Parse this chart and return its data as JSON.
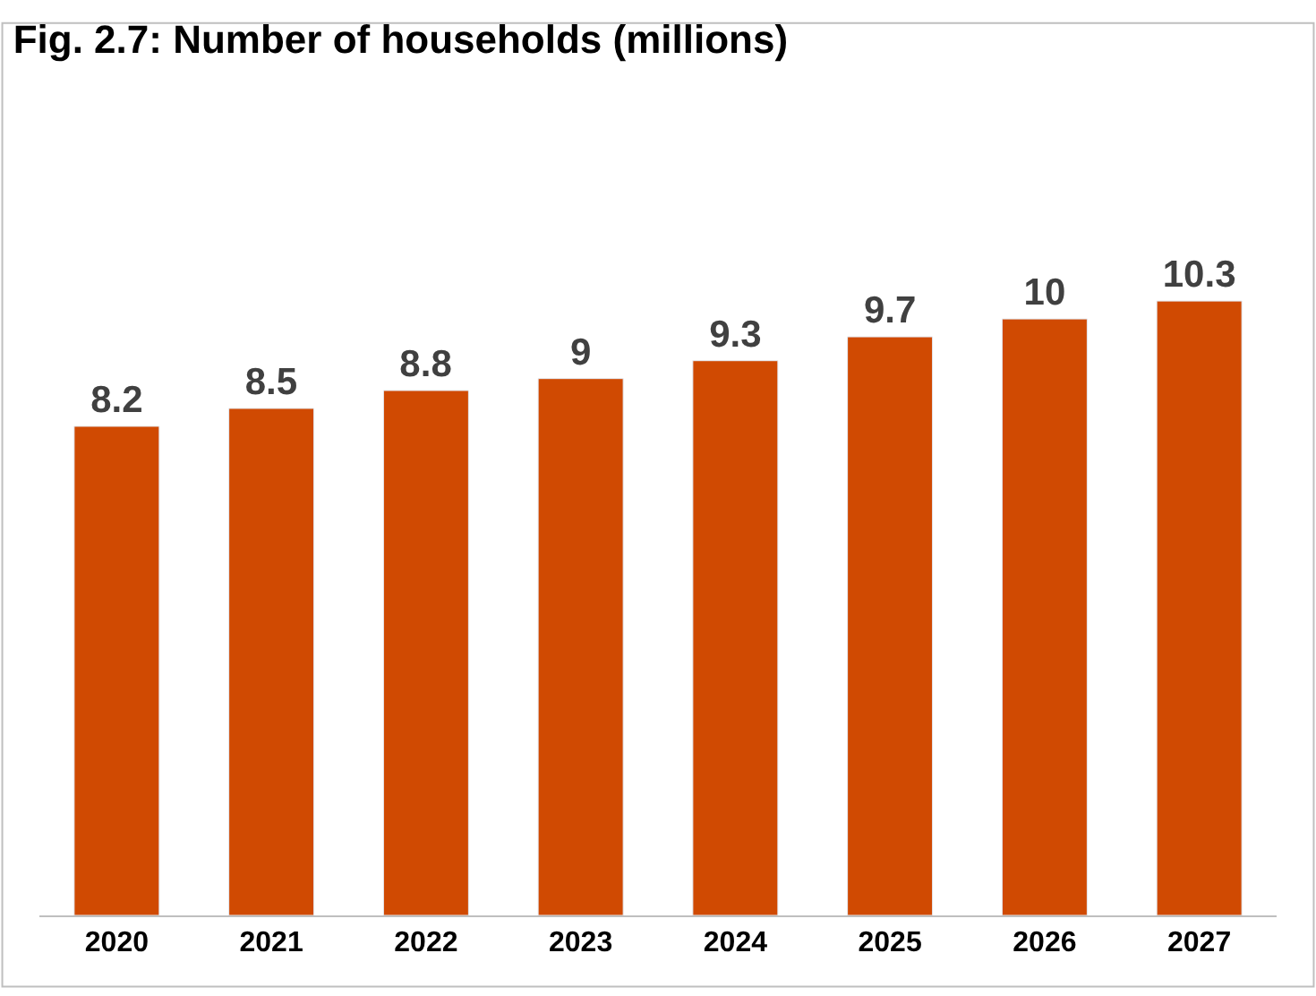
{
  "chart_data": {
    "type": "bar",
    "title": "Fig. 2.7: Number of households (millions)",
    "categories": [
      "2020",
      "2021",
      "2022",
      "2023",
      "2024",
      "2025",
      "2026",
      "2027"
    ],
    "values": [
      8.2,
      8.5,
      8.8,
      9,
      9.3,
      9.7,
      10,
      10.3
    ],
    "color": "#d04a02",
    "data_labels": true,
    "tick_labels": "x"
  }
}
